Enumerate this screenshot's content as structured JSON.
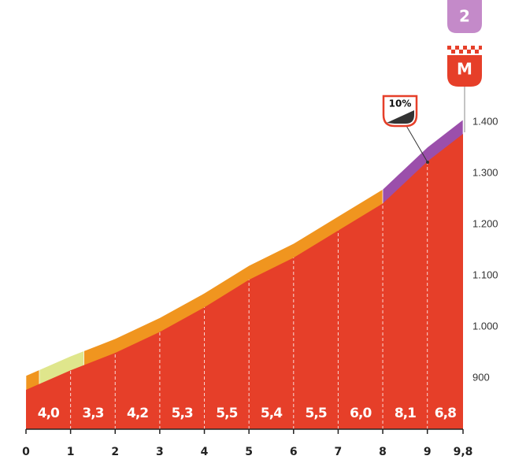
{
  "chart_data": {
    "type": "area",
    "x": [
      0,
      1,
      2,
      3,
      4,
      5,
      6,
      7,
      8,
      9,
      9.8
    ],
    "values": [
      877,
      915,
      949,
      990,
      1038,
      1092,
      1135,
      1188,
      1241,
      1323,
      1377
    ],
    "color": "#e63f29",
    "gradients": [
      4.0,
      3.3,
      4.2,
      5.3,
      5.5,
      5.4,
      5.5,
      6.0,
      8.1,
      6.8
    ],
    "gradient_labels": [
      "4,0",
      "3,3",
      "4,2",
      "5,3",
      "5,5",
      "5,4",
      "5,5",
      "6,0",
      "8,1",
      "6,8"
    ],
    "band": [
      {
        "from": 0,
        "to": 0.3,
        "color": "#f0951f"
      },
      {
        "from": 0.3,
        "to": 1.3,
        "color": "#dfe68c"
      },
      {
        "from": 1.3,
        "to": 8,
        "color": "#f0951f"
      },
      {
        "from": 8,
        "to": 9.8,
        "color": "#9b4fab"
      }
    ],
    "xlim": [
      0,
      9.8
    ],
    "xticks": [
      0,
      1,
      2,
      3,
      4,
      5,
      6,
      7,
      8,
      9,
      {
        "value": 9.8,
        "label": "9,8"
      }
    ],
    "ylim": [
      800,
      1400
    ],
    "yticks": [
      {
        "value": 900,
        "label": "900"
      },
      {
        "value": 1000,
        "label": "1.000"
      },
      {
        "value": 1100,
        "label": "1.100"
      },
      {
        "value": 1200,
        "label": "1.200"
      },
      {
        "value": 1300,
        "label": "1.300"
      },
      {
        "value": 1400,
        "label": "1.400"
      }
    ],
    "annotations": {
      "category": "2",
      "finish": "M",
      "max_gradient": "10%"
    }
  }
}
